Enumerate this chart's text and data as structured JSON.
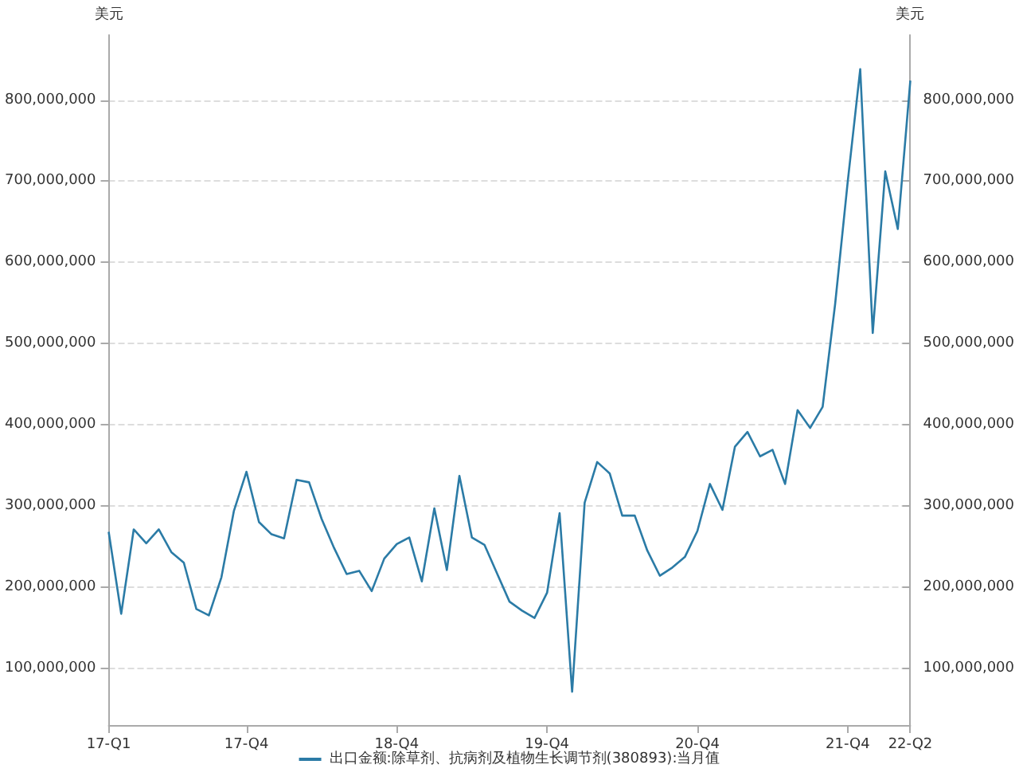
{
  "chart_data": {
    "type": "line",
    "ylabel": "美元",
    "y2label": "美元",
    "categories": [
      "17-Q1",
      null,
      null,
      null,
      null,
      null,
      null,
      null,
      null,
      null,
      null,
      "17-Q4",
      null,
      null,
      null,
      null,
      null,
      null,
      null,
      null,
      null,
      null,
      null,
      "18-Q4",
      null,
      null,
      null,
      null,
      null,
      null,
      null,
      null,
      null,
      null,
      null,
      "19-Q4",
      null,
      null,
      null,
      null,
      null,
      null,
      null,
      null,
      null,
      null,
      null,
      "20-Q4",
      null,
      null,
      null,
      null,
      null,
      null,
      null,
      null,
      null,
      null,
      null,
      "21-Q4",
      null,
      null,
      null,
      null,
      "22-Q2"
    ],
    "series": [
      {
        "name": "出口金额:除草剂、抗病剂及植物生长调节剂(380893):当月值",
        "color": "#2b7ba6",
        "values": [
          268000000,
          167000000,
          271000000,
          254000000,
          271000000,
          243000000,
          230000000,
          173000000,
          165000000,
          212000000,
          294000000,
          342000000,
          280000000,
          265000000,
          260000000,
          332000000,
          329000000,
          284000000,
          248000000,
          216000000,
          220000000,
          195000000,
          235000000,
          253000000,
          261000000,
          207000000,
          297000000,
          221000000,
          337000000,
          261000000,
          252000000,
          217000000,
          182000000,
          171000000,
          162000000,
          193000000,
          291000000,
          71000000,
          304000000,
          354000000,
          340000000,
          288000000,
          288000000,
          245000000,
          214000000,
          224000000,
          237000000,
          269000000,
          327000000,
          295000000,
          373000000,
          391000000,
          361000000,
          369000000,
          327000000,
          418000000,
          396000000,
          422000000,
          549000000,
          699000000,
          838000000,
          513000000,
          712000000,
          641000000,
          824000000
        ]
      }
    ],
    "ylim": [
      30000000,
      880000000
    ],
    "yticks": [
      {
        "value": 100000000,
        "label": "100,000,000"
      },
      {
        "value": 200000000,
        "label": "200,000,000"
      },
      {
        "value": 300000000,
        "label": "300,000,000"
      },
      {
        "value": 400000000,
        "label": "400,000,000"
      },
      {
        "value": 500000000,
        "label": "500,000,000"
      },
      {
        "value": 600000000,
        "label": "600,000,000"
      },
      {
        "value": 700000000,
        "label": "700,000,000"
      },
      {
        "value": 800000000,
        "label": "800,000,000"
      }
    ],
    "y2lim": [
      30000000,
      880000000
    ],
    "y2ticks": [
      {
        "value": 100000000,
        "label": "100,000,000"
      },
      {
        "value": 200000000,
        "label": "200,000,000"
      },
      {
        "value": 300000000,
        "label": "300,000,000"
      },
      {
        "value": 400000000,
        "label": "400,000,000"
      },
      {
        "value": 500000000,
        "label": "500,000,000"
      },
      {
        "value": 600000000,
        "label": "600,000,000"
      },
      {
        "value": 700000000,
        "label": "700,000,000"
      },
      {
        "value": 800000000,
        "label": "800,000,000"
      }
    ],
    "grid": "y",
    "legend": "bottom",
    "marker": "none",
    "line_style": "solid"
  }
}
